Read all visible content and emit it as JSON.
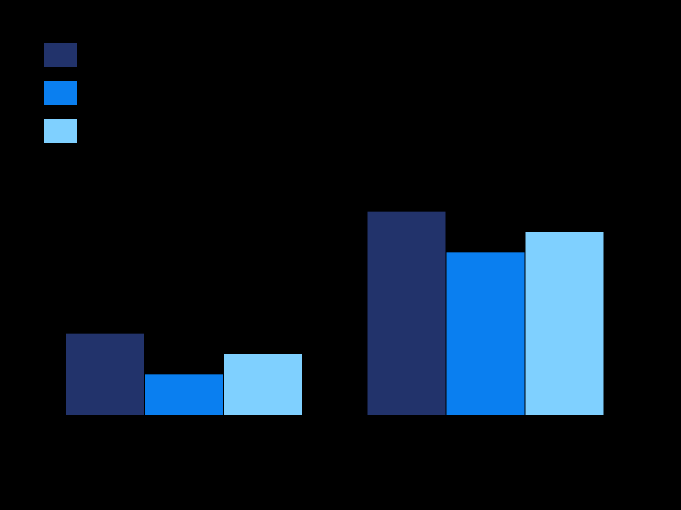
{
  "chart_data": {
    "type": "bar",
    "categories": [
      null,
      null
    ],
    "series": [
      {
        "color": "#22336b",
        "values": [
          2,
          5
        ]
      },
      {
        "color": "#0a7ff0",
        "values": [
          1,
          4
        ]
      },
      {
        "color": "#7fd0ff",
        "values": [
          1.5,
          4.5
        ]
      }
    ],
    "ylim": [
      0,
      9
    ],
    "legend": "upper-left",
    "tick_labels": false
  }
}
